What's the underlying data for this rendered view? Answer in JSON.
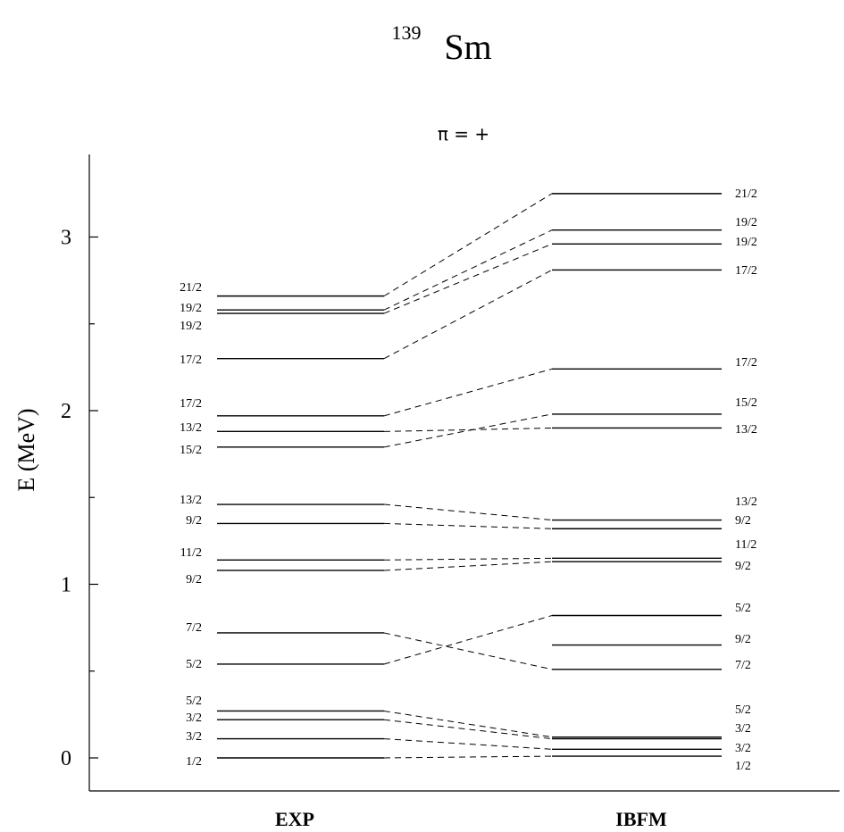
{
  "title": {
    "mass_number": "139",
    "element": "Sm"
  },
  "parity_label": "π = +",
  "y_axis": {
    "label": "E (MeV)",
    "ylim": [
      -0.2,
      3.5
    ],
    "major_ticks": [
      "0",
      "1",
      "2",
      "3"
    ],
    "minor_ticks": [
      0.5,
      1.5,
      2.5
    ]
  },
  "columns": {
    "left": "EXP",
    "right": "IBFM"
  },
  "chart_data": {
    "type": "level_scheme",
    "title": "139Sm",
    "subtitle": "π = +",
    "ylabel": "E (MeV)",
    "ylim": [
      -0.2,
      3.5
    ],
    "exp_levels": [
      {
        "spin": "1/2",
        "energy": 0.0
      },
      {
        "spin": "3/2",
        "energy": 0.11
      },
      {
        "spin": "3/2",
        "energy": 0.22
      },
      {
        "spin": "5/2",
        "energy": 0.27
      },
      {
        "spin": "5/2",
        "energy": 0.54
      },
      {
        "spin": "7/2",
        "energy": 0.72
      },
      {
        "spin": "9/2",
        "energy": 1.08
      },
      {
        "spin": "11/2",
        "energy": 1.14
      },
      {
        "spin": "9/2",
        "energy": 1.35
      },
      {
        "spin": "13/2",
        "energy": 1.46
      },
      {
        "spin": "15/2",
        "energy": 1.79
      },
      {
        "spin": "13/2",
        "energy": 1.88
      },
      {
        "spin": "17/2",
        "energy": 1.97
      },
      {
        "spin": "17/2",
        "energy": 2.3
      },
      {
        "spin": "19/2",
        "energy": 2.56
      },
      {
        "spin": "19/2",
        "energy": 2.58
      },
      {
        "spin": "21/2",
        "energy": 2.66
      }
    ],
    "ibfm_levels": [
      {
        "spin": "1/2",
        "energy": 0.01
      },
      {
        "spin": "3/2",
        "energy": 0.05
      },
      {
        "spin": "3/2",
        "energy": 0.11
      },
      {
        "spin": "5/2",
        "energy": 0.12
      },
      {
        "spin": "7/2",
        "energy": 0.51
      },
      {
        "spin": "9/2",
        "energy": 0.65
      },
      {
        "spin": "5/2",
        "energy": 0.82
      },
      {
        "spin": "9/2",
        "energy": 1.13
      },
      {
        "spin": "11/2",
        "energy": 1.15
      },
      {
        "spin": "9/2",
        "energy": 1.32
      },
      {
        "spin": "13/2",
        "energy": 1.37
      },
      {
        "spin": "13/2",
        "energy": 1.9
      },
      {
        "spin": "15/2",
        "energy": 1.98
      },
      {
        "spin": "17/2",
        "energy": 2.24
      },
      {
        "spin": "17/2",
        "energy": 2.81
      },
      {
        "spin": "19/2",
        "energy": 2.96
      },
      {
        "spin": "19/2",
        "energy": 3.04
      },
      {
        "spin": "21/2",
        "energy": 3.25
      }
    ],
    "connections": [
      [
        0,
        0
      ],
      [
        1,
        1
      ],
      [
        2,
        2
      ],
      [
        3,
        3
      ],
      [
        4,
        6
      ],
      [
        5,
        4
      ],
      [
        6,
        7
      ],
      [
        7,
        8
      ],
      [
        8,
        9
      ],
      [
        9,
        10
      ],
      [
        10,
        12
      ],
      [
        11,
        11
      ],
      [
        12,
        13
      ],
      [
        13,
        14
      ],
      [
        14,
        15
      ],
      [
        15,
        16
      ],
      [
        16,
        17
      ]
    ]
  }
}
